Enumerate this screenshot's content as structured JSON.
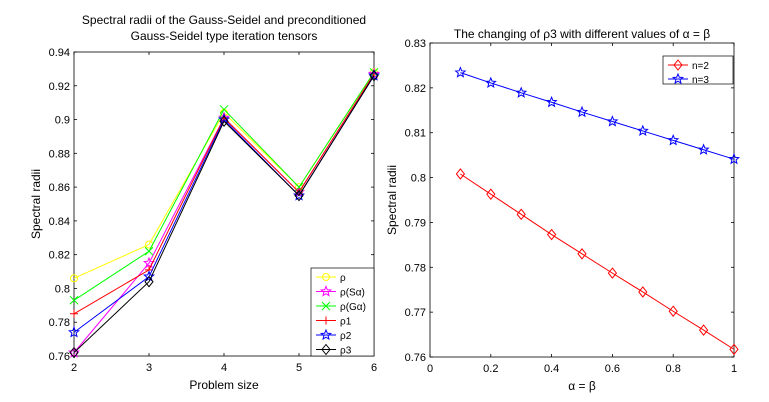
{
  "chart_data": [
    {
      "type": "line",
      "title": [
        "Spectral radii of the Gauss-Seidel and preconditioned",
        "Gauss-Seidel type iteration tensors"
      ],
      "xlabel": "Problem size",
      "ylabel": "Spectral radii",
      "xlim": [
        2,
        6
      ],
      "ylim": [
        0.76,
        0.94
      ],
      "xticks": [
        2,
        3,
        4,
        5,
        6
      ],
      "xtick_labels": [
        "2",
        "3",
        "4",
        "5",
        "6"
      ],
      "yticks": [
        0.76,
        0.78,
        0.8,
        0.82,
        0.84,
        0.86,
        0.88,
        0.9,
        0.92,
        0.94
      ],
      "ytick_labels": [
        "0.76",
        "0.78",
        "0.8",
        "0.82",
        "0.84",
        "0.86",
        "0.88",
        "0.9",
        "0.92",
        "0.94"
      ],
      "legend_position": "bottom-right",
      "x": [
        2,
        3,
        4,
        5,
        6
      ],
      "series": [
        {
          "name": "ρ",
          "color": "#ffff00",
          "marker": "circle",
          "values": [
            0.806,
            0.826,
            0.904,
            0.86,
            0.928
          ]
        },
        {
          "name": "ρ(Sα)",
          "color": "#ff00ff",
          "marker": "star",
          "values": [
            0.762,
            0.815,
            0.901,
            0.857,
            0.927
          ]
        },
        {
          "name": "ρ(Gα)",
          "color": "#00ff00",
          "marker": "x",
          "values": [
            0.793,
            0.822,
            0.906,
            0.86,
            0.928
          ]
        },
        {
          "name": "ρ1",
          "color": "#ff0000",
          "marker": "plus",
          "values": [
            0.785,
            0.811,
            0.901,
            0.857,
            0.927
          ]
        },
        {
          "name": "ρ2",
          "color": "#0000ff",
          "marker": "star",
          "values": [
            0.774,
            0.807,
            0.9,
            0.855,
            0.926
          ]
        },
        {
          "name": "ρ3",
          "color": "#000000",
          "marker": "diamond",
          "values": [
            0.762,
            0.804,
            0.899,
            0.855,
            0.926
          ]
        }
      ]
    },
    {
      "type": "line",
      "title": [
        "The changing of ρ3 with different values of α = β"
      ],
      "xlabel": "α = β",
      "ylabel": "Spectral radii",
      "xlim": [
        0,
        1
      ],
      "ylim": [
        0.76,
        0.83
      ],
      "xticks": [
        0,
        0.2,
        0.4,
        0.6,
        0.8,
        1
      ],
      "xtick_labels": [
        "0",
        "0.2",
        "0.4",
        "0.6",
        "0.8",
        "1"
      ],
      "yticks": [
        0.76,
        0.77,
        0.78,
        0.79,
        0.8,
        0.81,
        0.82,
        0.83
      ],
      "ytick_labels": [
        "0.76",
        "0.77",
        "0.78",
        "0.79",
        "0.8",
        "0.81",
        "0.82",
        "0.83"
      ],
      "legend_position": "top-right",
      "x": [
        0.1,
        0.2,
        0.3,
        0.4,
        0.5,
        0.6,
        0.7,
        0.8,
        0.9,
        1.0
      ],
      "series": [
        {
          "name": "n=2",
          "color": "#ff0000",
          "marker": "diamond",
          "values": [
            0.8008,
            0.7963,
            0.7918,
            0.7873,
            0.783,
            0.7787,
            0.7745,
            0.7702,
            0.766,
            0.7617
          ]
        },
        {
          "name": "n=3",
          "color": "#0000ff",
          "marker": "star",
          "values": [
            0.8234,
            0.8211,
            0.8189,
            0.8168,
            0.8146,
            0.8125,
            0.8104,
            0.8083,
            0.8062,
            0.8041
          ]
        }
      ]
    }
  ]
}
